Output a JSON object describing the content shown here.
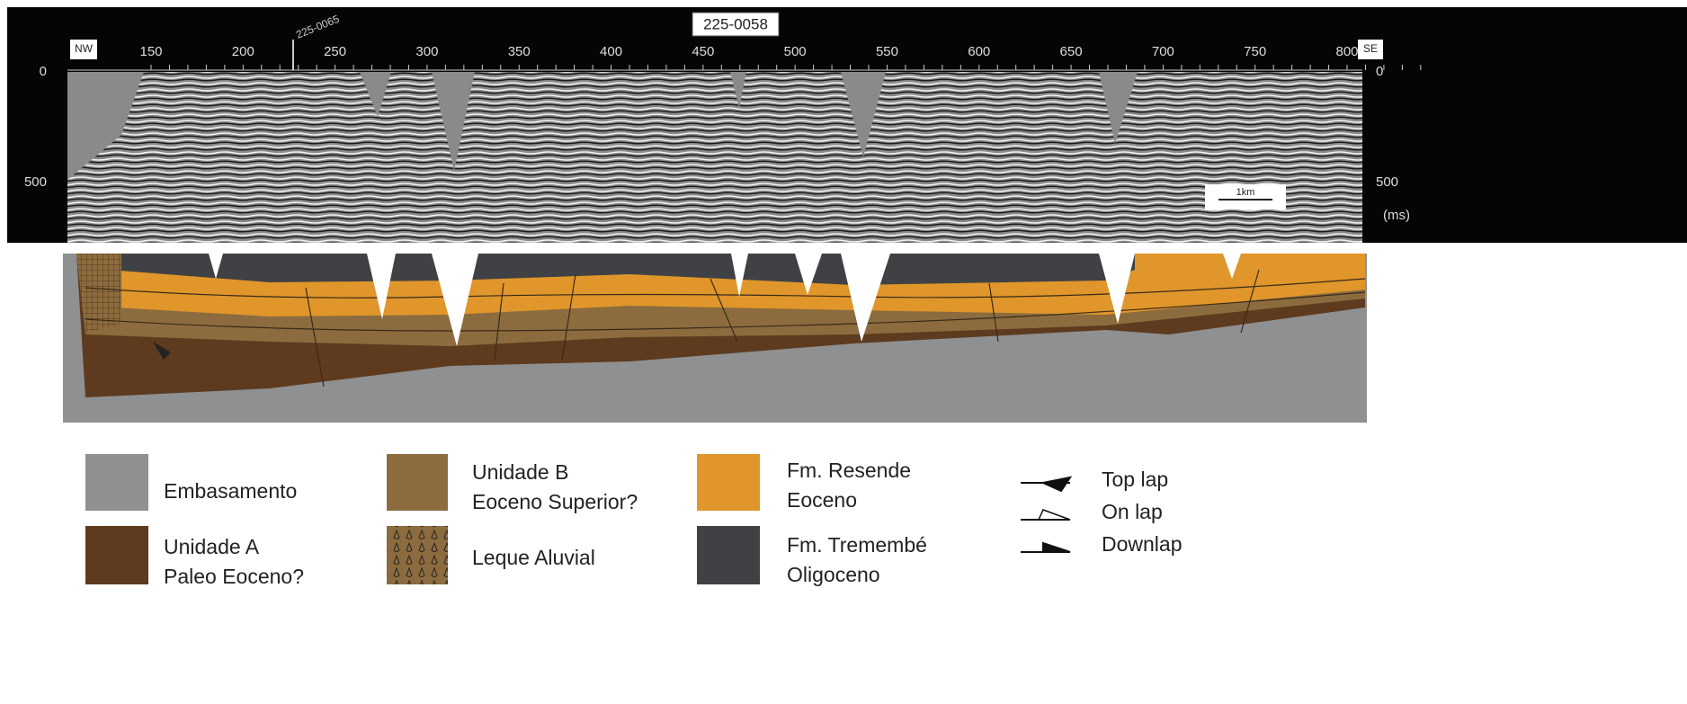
{
  "seismic": {
    "line": "225-0058",
    "well": "225-0065",
    "start": "NW",
    "end": "SE",
    "traces": [
      "150",
      "200",
      "250",
      "300",
      "350",
      "400",
      "450",
      "500",
      "550",
      "600",
      "650",
      "700",
      "750",
      "800"
    ],
    "times": [
      "0",
      "500"
    ],
    "time_unit": "(ms)",
    "scale": "1km"
  },
  "legend": {
    "units": [
      {
        "lines": [
          "Embasamento"
        ]
      },
      {
        "lines": [
          "Unidade A",
          "Paleo Eoceno?"
        ]
      },
      {
        "lines": [
          "Unidade B",
          "Eoceno Superior?"
        ]
      },
      {
        "lines": [
          "Leque Aluvial"
        ]
      },
      {
        "lines": [
          "Fm. Resende",
          "Eoceno"
        ]
      },
      {
        "lines": [
          "Fm. Tremembé",
          "Oligoceno"
        ]
      }
    ],
    "symbols": [
      "Top lap",
      "On lap",
      "Downlap"
    ]
  }
}
